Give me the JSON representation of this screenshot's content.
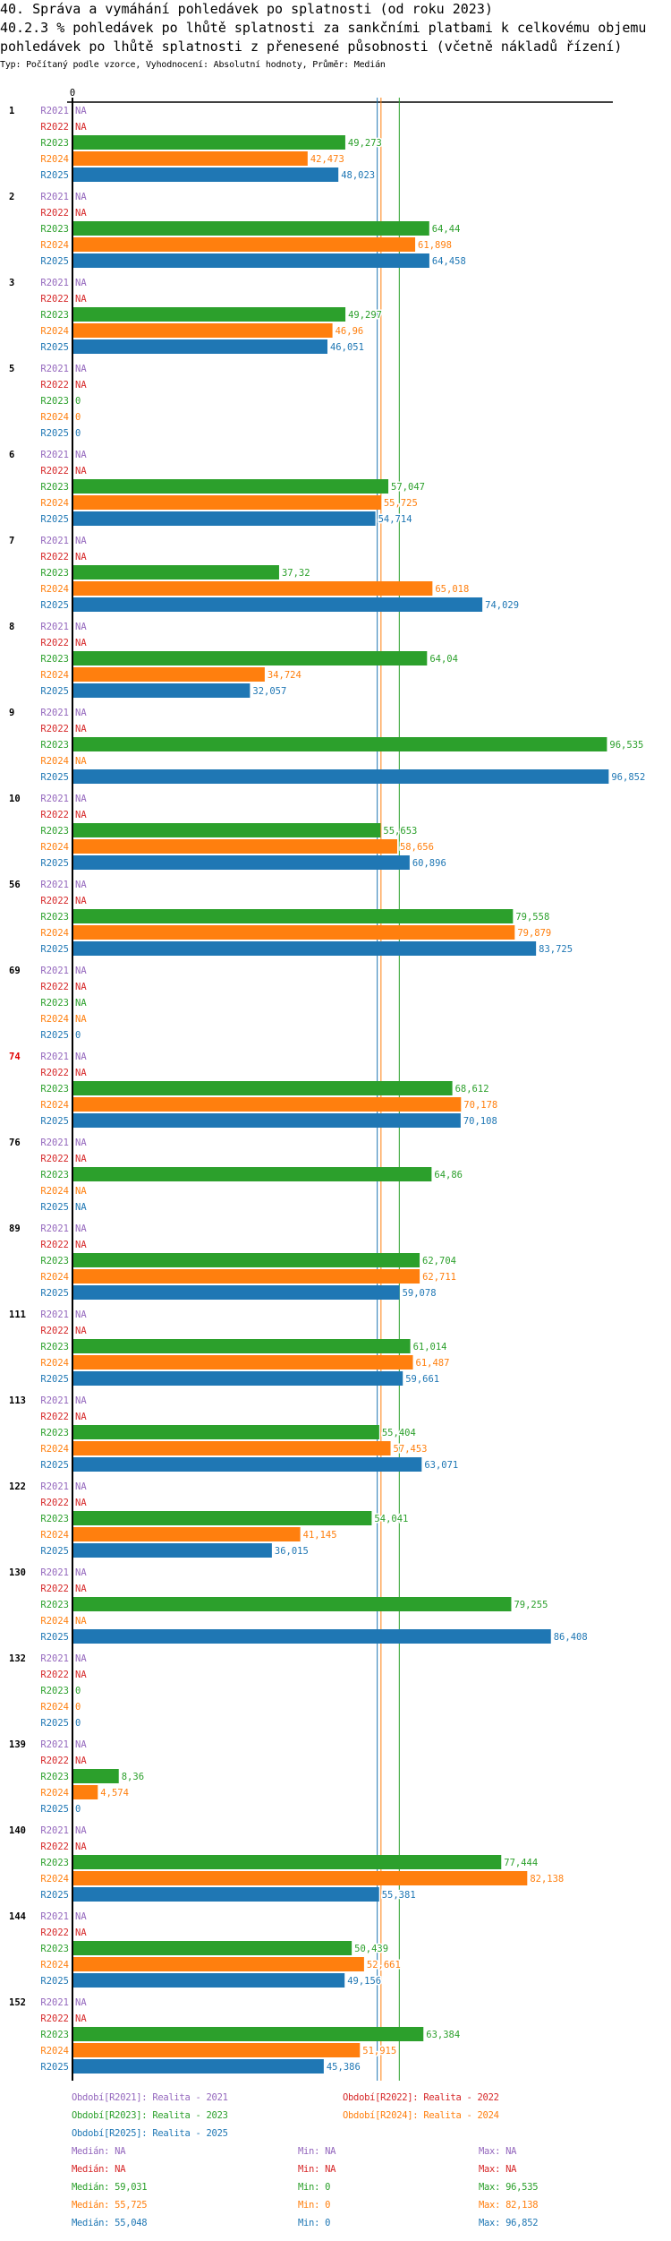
{
  "header": {
    "title_line1": "40. Správa a vymáhání pohledávek po splatnosti (od roku 2023)",
    "title_line2": "40.2.3 % pohledávek po lhůtě splatnosti za sankčními platbami k celkovému objemu",
    "title_line3": "pohledávek po lhůtě splatnosti z přenesené působnosti (včetně nákladů řízení)",
    "subtitle": "Typ: Počítaný podle vzorce, Vyhodnocení: Absolutní hodnoty, Průměr: Medián"
  },
  "chart_data": {
    "type": "bar",
    "orientation": "horizontal",
    "title": "40.2.3 % pohledávek po lhůtě splatnosti za sankčními platbami k celkovému objemu pohledávek po lhůtě splatnosti z přenesené působnosti (včetně nákladů řízení)",
    "axis_zero_label": "0",
    "xlim": [
      0,
      97.6
    ],
    "na_label": "NA",
    "series": [
      {
        "code": "R2021",
        "legend": "Období[R2021]: Realita - 2021",
        "color": "#9467bd",
        "median": "NA",
        "min": "NA",
        "max": "NA"
      },
      {
        "code": "R2022",
        "legend": "Období[R2022]: Realita - 2022",
        "color": "#d62728",
        "median": "NA",
        "min": "NA",
        "max": "NA"
      },
      {
        "code": "R2023",
        "legend": "Období[R2023]: Realita - 2023",
        "color": "#2ca02c",
        "median": "59,031",
        "min": "0",
        "max": "96,535",
        "median_value": 59.031
      },
      {
        "code": "R2024",
        "legend": "Období[R2024]: Realita - 2024",
        "color": "#ff7f0e",
        "median": "55,725",
        "min": "0",
        "max": "82,138",
        "median_value": 55.725
      },
      {
        "code": "R2025",
        "legend": "Období[R2025]: Realita - 2025",
        "color": "#1f77b4",
        "median": "55,048",
        "min": "0",
        "max": "96,852",
        "median_value": 55.048
      }
    ],
    "stat_labels": {
      "median": "Medián:",
      "min": "Min:",
      "max": "Max:"
    },
    "groups": [
      {
        "label": "1",
        "values": [
          null,
          null,
          49.273,
          42.473,
          48.023
        ]
      },
      {
        "label": "2",
        "values": [
          null,
          null,
          64.44,
          61.898,
          64.458
        ]
      },
      {
        "label": "3",
        "values": [
          null,
          null,
          49.297,
          46.96,
          46.051
        ]
      },
      {
        "label": "5",
        "values": [
          null,
          null,
          0,
          0,
          0
        ]
      },
      {
        "label": "6",
        "values": [
          null,
          null,
          57.047,
          55.725,
          54.714
        ]
      },
      {
        "label": "7",
        "values": [
          null,
          null,
          37.32,
          65.018,
          74.029
        ]
      },
      {
        "label": "8",
        "values": [
          null,
          null,
          64.04,
          34.724,
          32.057
        ]
      },
      {
        "label": "9",
        "values": [
          null,
          null,
          96.535,
          null,
          96.852
        ]
      },
      {
        "label": "10",
        "values": [
          null,
          null,
          55.653,
          58.656,
          60.896
        ]
      },
      {
        "label": "56",
        "values": [
          null,
          null,
          79.558,
          79.879,
          83.725
        ]
      },
      {
        "label": "69",
        "values": [
          null,
          null,
          null,
          null,
          0
        ]
      },
      {
        "label": "74",
        "values": [
          null,
          null,
          68.612,
          70.178,
          70.108
        ],
        "highlight": "#e00000"
      },
      {
        "label": "76",
        "values": [
          null,
          null,
          64.86,
          null,
          null
        ]
      },
      {
        "label": "89",
        "values": [
          null,
          null,
          62.704,
          62.711,
          59.078
        ]
      },
      {
        "label": "111",
        "values": [
          null,
          null,
          61.014,
          61.487,
          59.661
        ]
      },
      {
        "label": "113",
        "values": [
          null,
          null,
          55.404,
          57.453,
          63.071
        ]
      },
      {
        "label": "122",
        "values": [
          null,
          null,
          54.041,
          41.145,
          36.015
        ]
      },
      {
        "label": "130",
        "values": [
          null,
          null,
          79.255,
          null,
          86.408
        ]
      },
      {
        "label": "132",
        "values": [
          null,
          null,
          0,
          0,
          0
        ]
      },
      {
        "label": "139",
        "values": [
          null,
          null,
          8.36,
          4.574,
          0
        ]
      },
      {
        "label": "140",
        "values": [
          null,
          null,
          77.444,
          82.138,
          55.381
        ]
      },
      {
        "label": "144",
        "values": [
          null,
          null,
          50.439,
          52.661,
          49.156
        ]
      },
      {
        "label": "152",
        "values": [
          null,
          null,
          63.384,
          51.915,
          45.386
        ]
      }
    ]
  }
}
